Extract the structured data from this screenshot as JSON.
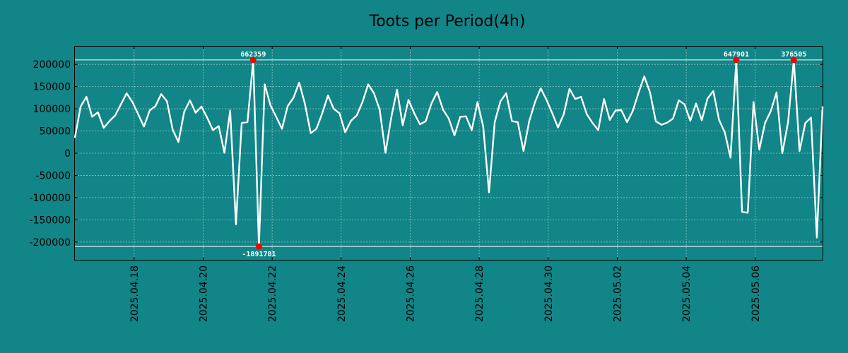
{
  "chart_data": {
    "type": "line",
    "title": "Toots per Period(4h)",
    "xlabel": "",
    "ylabel": "",
    "ylim": [
      -240000,
      240000
    ],
    "xlim": [
      0,
      130
    ],
    "grid": true,
    "colors": {
      "background": "#118587",
      "line": "#ffffff",
      "marker": "#ff0000",
      "annotation": "#ffffff"
    },
    "y_ticks": [
      {
        "value": 200000,
        "label": "200000"
      },
      {
        "value": 150000,
        "label": "150000"
      },
      {
        "value": 100000,
        "label": "100000"
      },
      {
        "value": 50000,
        "label": "50000"
      },
      {
        "value": 0,
        "label": "0"
      },
      {
        "value": -50000,
        "label": "-50000"
      },
      {
        "value": -100000,
        "label": "-100000"
      },
      {
        "value": -150000,
        "label": "-150000"
      },
      {
        "value": -200000,
        "label": "-200000"
      }
    ],
    "x_ticks": [
      {
        "value": 10.3,
        "label": "2025.04.18"
      },
      {
        "value": 22.3,
        "label": "2025.04.20"
      },
      {
        "value": 34.3,
        "label": "2025.04.22"
      },
      {
        "value": 46.3,
        "label": "2025.04.24"
      },
      {
        "value": 58.3,
        "label": "2025.04.26"
      },
      {
        "value": 70.3,
        "label": "2025.04.28"
      },
      {
        "value": 82.3,
        "label": "2025.04.30"
      },
      {
        "value": 94.3,
        "label": "2025.05.02"
      },
      {
        "value": 106.3,
        "label": "2025.05.04"
      },
      {
        "value": 118.3,
        "label": "2025.05.06"
      }
    ],
    "clip_lines": [
      210000,
      -210000
    ],
    "series": [
      {
        "name": "Toots",
        "values": [
          35000,
          105000,
          127000,
          82000,
          92000,
          57000,
          72000,
          85000,
          110000,
          135000,
          115000,
          88000,
          60000,
          96000,
          106000,
          133000,
          117000,
          53000,
          25000,
          93000,
          119000,
          91000,
          105000,
          80000,
          52000,
          61000,
          1000,
          96000,
          -160000,
          68000,
          70000,
          210000,
          -210000,
          155000,
          108000,
          82000,
          55000,
          106000,
          125000,
          159000,
          111000,
          45000,
          55000,
          90000,
          130000,
          100000,
          90000,
          47000,
          73000,
          85000,
          115000,
          155000,
          135000,
          98000,
          1000,
          80000,
          143000,
          63000,
          120000,
          90000,
          65000,
          72000,
          112000,
          138000,
          98000,
          78000,
          40000,
          82000,
          83000,
          52000,
          115000,
          60000,
          -88000,
          70000,
          117000,
          135000,
          72000,
          70000,
          5000,
          72000,
          115000,
          146000,
          120000,
          90000,
          58000,
          88000,
          145000,
          122000,
          127000,
          88000,
          68000,
          52000,
          122000,
          75000,
          96000,
          97000,
          70000,
          95000,
          136000,
          173000,
          137000,
          72000,
          64000,
          69000,
          78000,
          119000,
          110000,
          73000,
          112000,
          74000,
          123000,
          140000,
          75000,
          47000,
          -10000,
          210000,
          -132000,
          -134000,
          115000,
          8000,
          68000,
          95000,
          137000,
          0,
          70000,
          210000,
          5000,
          68000,
          80000,
          -190000,
          105000
        ]
      }
    ],
    "annotations": [
      {
        "x": 31,
        "y": 210000,
        "label": "662359",
        "position": "above"
      },
      {
        "x": 32,
        "y": -210000,
        "label": "-1891781",
        "position": "below"
      },
      {
        "x": 115,
        "y": 210000,
        "label": "647901",
        "position": "above"
      },
      {
        "x": 125,
        "y": 210000,
        "label": "376505",
        "position": "above"
      }
    ]
  }
}
